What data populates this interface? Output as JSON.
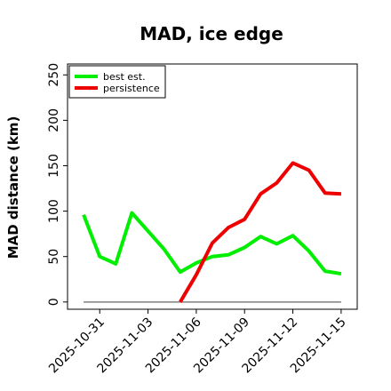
{
  "chart_data": {
    "type": "line",
    "title": "MAD, ice edge",
    "xlabel": "",
    "ylabel": "MAD distance (km)",
    "x_ticks": [
      "2025-10-31",
      "2025-11-03",
      "2025-11-06",
      "2025-11-09",
      "2025-11-12",
      "2025-11-15"
    ],
    "xlim": [
      "2025-10-29",
      "2025-11-16"
    ],
    "y_ticks": [
      0,
      50,
      100,
      150,
      200,
      250
    ],
    "ylim": [
      -8,
      262
    ],
    "grid": false,
    "legend": "top-left",
    "reference_line": {
      "y": 0,
      "x_from": "2025-10-30",
      "x_to": "2025-11-15",
      "color": "#808080"
    },
    "series": [
      {
        "name": "best est.",
        "color": "#00ee00",
        "x": [
          "2025-10-30",
          "2025-10-31",
          "2025-11-01",
          "2025-11-02",
          "2025-11-03",
          "2025-11-04",
          "2025-11-05",
          "2025-11-06",
          "2025-11-07",
          "2025-11-08",
          "2025-11-09",
          "2025-11-10",
          "2025-11-11",
          "2025-11-12",
          "2025-11-13",
          "2025-11-14",
          "2025-11-15"
        ],
        "y": [
          96,
          50,
          42,
          98,
          78,
          58,
          33,
          43,
          50,
          52,
          60,
          72,
          64,
          73,
          56,
          34,
          31
        ]
      },
      {
        "name": "persistence",
        "color": "#ee0000",
        "x": [
          "2025-11-05",
          "2025-11-06",
          "2025-11-07",
          "2025-11-08",
          "2025-11-09",
          "2025-11-10",
          "2025-11-11",
          "2025-11-12",
          "2025-11-13",
          "2025-11-14",
          "2025-11-15"
        ],
        "y": [
          0,
          30,
          65,
          82,
          91,
          119,
          131,
          153,
          145,
          120,
          119
        ]
      }
    ]
  }
}
